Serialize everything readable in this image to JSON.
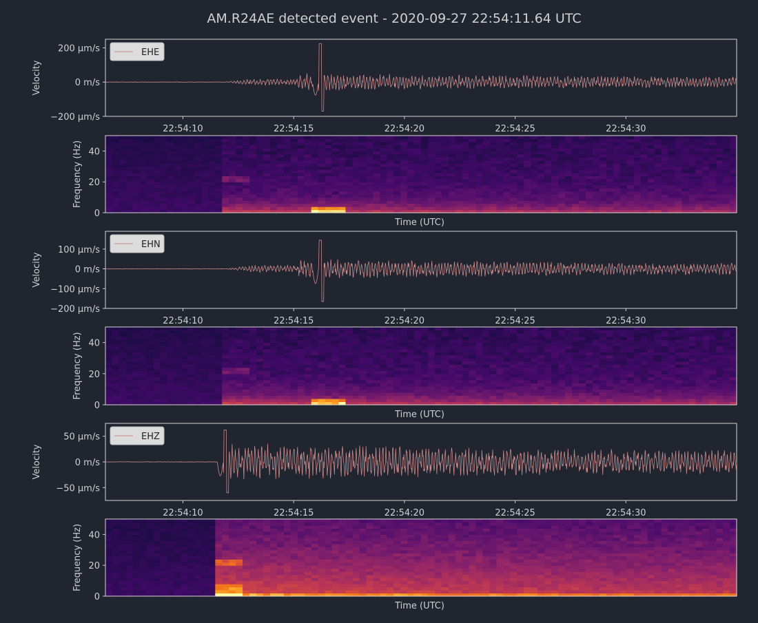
{
  "figure": {
    "title": "AM.R24AE detected event - 2020-09-27 22:54:11.64 UTC",
    "background": "#212530",
    "text_color": "#d0d0d0",
    "waveform_color": "#c88a8a",
    "legend_bg": "#dcdcdc",
    "legend_text": "#222222",
    "spectrogram_colormap": "inferno"
  },
  "chart_data": [
    {
      "type": "line",
      "title": "",
      "xlabel": "",
      "ylabel": "Velocity",
      "legend": "EHE",
      "legend_position": "top-left",
      "grid": false,
      "x_range": [
        "22:54:06.5",
        "22:54:35"
      ],
      "xticks": [
        "22:54:10",
        "22:54:15",
        "22:54:20",
        "22:54:25",
        "22:54:30"
      ],
      "ylim": [
        -200,
        250
      ],
      "y_unit": "µm/s",
      "yticks": [
        {
          "value": 200,
          "label": "200 µm/s"
        },
        {
          "value": 0,
          "label": "0 m/s"
        },
        {
          "value": -200,
          "label": "−200 µm/s"
        }
      ],
      "series": [
        {
          "name": "EHE",
          "onset": "22:54:11.8",
          "peak": 225,
          "trough": -170,
          "peak_time": "22:54:16.2"
        }
      ]
    },
    {
      "type": "heatmap",
      "title": "",
      "xlabel": "Time (UTC)",
      "ylabel": "Frequency (Hz)",
      "ylim": [
        0,
        50
      ],
      "yticks": [
        {
          "value": 40,
          "label": "40"
        },
        {
          "value": 20,
          "label": "20"
        },
        {
          "value": 0,
          "label": "0"
        }
      ],
      "colormap": "inferno",
      "channel": "EHE",
      "onset": "22:54:11.8",
      "intensity": "low"
    },
    {
      "type": "line",
      "title": "",
      "xlabel": "",
      "ylabel": "Velocity",
      "legend": "EHN",
      "legend_position": "top-left",
      "grid": false,
      "x_range": [
        "22:54:06.5",
        "22:54:35"
      ],
      "xticks": [
        "22:54:10",
        "22:54:15",
        "22:54:20",
        "22:54:25",
        "22:54:30"
      ],
      "ylim": [
        -200,
        190
      ],
      "y_unit": "µm/s",
      "yticks": [
        {
          "value": 100,
          "label": "100 µm/s"
        },
        {
          "value": 0,
          "label": "0 m/s"
        },
        {
          "value": -100,
          "label": "−100 µm/s"
        },
        {
          "value": -200,
          "label": "−200 µm/s"
        }
      ],
      "series": [
        {
          "name": "EHN",
          "onset": "22:54:11.8",
          "peak": 145,
          "trough": -165,
          "peak_time": "22:54:16.2"
        }
      ]
    },
    {
      "type": "heatmap",
      "title": "",
      "xlabel": "Time (UTC)",
      "ylabel": "Frequency (Hz)",
      "ylim": [
        0,
        50
      ],
      "yticks": [
        {
          "value": 40,
          "label": "40"
        },
        {
          "value": 20,
          "label": "20"
        },
        {
          "value": 0,
          "label": "0"
        }
      ],
      "colormap": "inferno",
      "channel": "EHN",
      "onset": "22:54:11.8",
      "intensity": "low"
    },
    {
      "type": "line",
      "title": "",
      "xlabel": "",
      "ylabel": "Velocity",
      "legend": "EHZ",
      "legend_position": "top-left",
      "grid": false,
      "x_range": [
        "22:54:06.5",
        "22:54:35"
      ],
      "xticks": [
        "22:54:10",
        "22:54:15",
        "22:54:20",
        "22:54:25",
        "22:54:30"
      ],
      "ylim": [
        -75,
        75
      ],
      "y_unit": "µm/s",
      "yticks": [
        {
          "value": 50,
          "label": "50 µm/s"
        },
        {
          "value": 0,
          "label": "0 m/s"
        },
        {
          "value": -50,
          "label": "−50 µm/s"
        }
      ],
      "series": [
        {
          "name": "EHZ",
          "onset": "22:54:11.6",
          "peak": 62,
          "trough": -60,
          "peak_time": "22:54:11.9"
        }
      ]
    },
    {
      "type": "heatmap",
      "title": "",
      "xlabel": "Time (UTC)",
      "ylabel": "Frequency (Hz)",
      "ylim": [
        0,
        50
      ],
      "yticks": [
        {
          "value": 40,
          "label": "40"
        },
        {
          "value": 20,
          "label": "20"
        },
        {
          "value": 0,
          "label": "0"
        }
      ],
      "colormap": "inferno",
      "channel": "EHZ",
      "onset": "22:54:11.6",
      "intensity": "high"
    }
  ]
}
